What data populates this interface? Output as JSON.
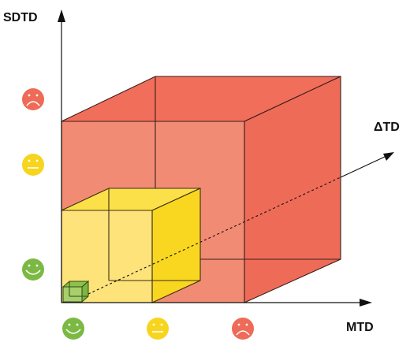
{
  "axes": {
    "y_label": "SDTD",
    "x_label": "MTD",
    "z_label": "ΔTD"
  },
  "cubes": [
    {
      "name": "large",
      "level": "red",
      "face_color": "#F28B74",
      "side_color": "#EE6B58",
      "top_color": "#F06E5A"
    },
    {
      "name": "medium",
      "level": "yellow",
      "face_color": "#FDE37A",
      "side_color": "#F9D720",
      "top_color": "#FCE04A"
    },
    {
      "name": "small",
      "level": "green",
      "face_color": "#A7CF6A",
      "side_color": "#7DB63F",
      "top_color": "#8FC04A"
    }
  ],
  "vertical_scale": [
    {
      "icon": "sad-face-icon",
      "color": "#EE6B58"
    },
    {
      "icon": "neutral-face-icon",
      "color": "#F7D51E"
    },
    {
      "icon": "happy-face-icon",
      "color": "#7CB944"
    }
  ],
  "horizontal_scale": [
    {
      "icon": "happy-face-icon",
      "color": "#7CB944"
    },
    {
      "icon": "neutral-face-icon",
      "color": "#F7D51E"
    },
    {
      "icon": "sad-face-icon",
      "color": "#EE6B58"
    }
  ]
}
